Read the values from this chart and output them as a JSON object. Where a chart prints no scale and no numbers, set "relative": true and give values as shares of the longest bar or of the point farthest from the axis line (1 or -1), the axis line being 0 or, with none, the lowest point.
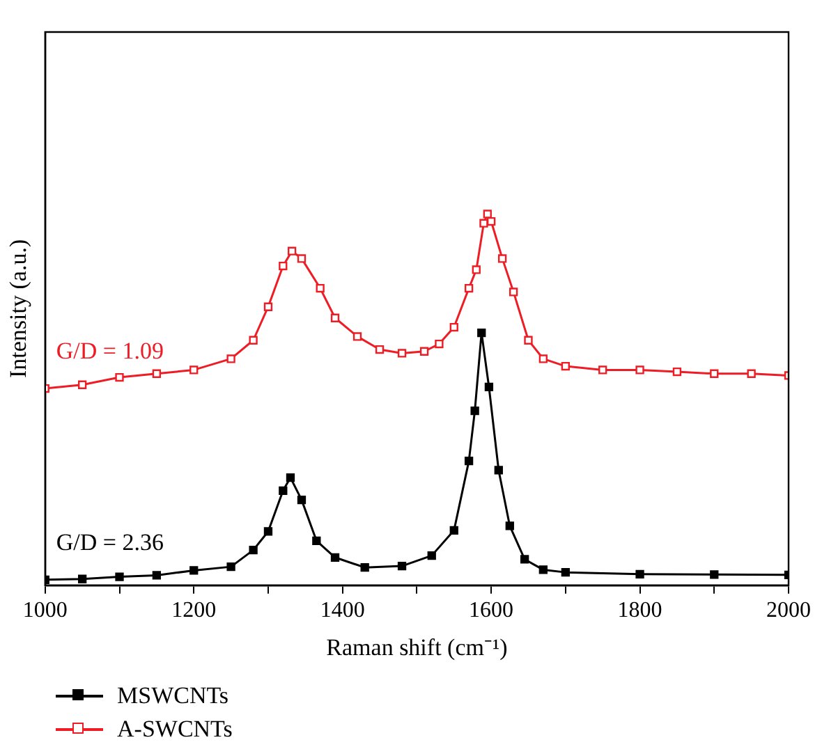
{
  "chart_data": {
    "type": "line",
    "xlabel": "Raman shift (cm⁻¹)",
    "ylabel": "Intensity (a.u.)",
    "relative": true,
    "marker": "square",
    "legend": "bottom",
    "grid": false,
    "xlim": [
      1000,
      2000
    ],
    "xticks": [
      1000,
      {
        "value": 1100,
        "label": null
      },
      1200,
      {
        "value": 1300,
        "label": null
      },
      1400,
      {
        "value": 1500,
        "label": null
      },
      1600,
      {
        "value": 1700,
        "label": null
      },
      1800,
      {
        "value": 1900,
        "label": null
      },
      2000
    ],
    "annotations": [
      "G/D = 1.09",
      "G/D = 2.36"
    ],
    "series": [
      {
        "name": "MSWCNTs",
        "color": "#000000",
        "x": [
          1000,
          1050,
          1100,
          1150,
          1200,
          1250,
          1280,
          1300,
          1320,
          1330,
          1345,
          1365,
          1390,
          1430,
          1480,
          1520,
          1550,
          1570,
          1578,
          1587,
          1597,
          1610,
          1625,
          1645,
          1670,
          1700,
          1800,
          1900,
          2000
        ],
        "values": [
          0.015,
          0.017,
          0.023,
          0.027,
          0.04,
          0.05,
          0.095,
          0.145,
          0.255,
          0.29,
          0.23,
          0.12,
          0.075,
          0.048,
          0.052,
          0.08,
          0.148,
          0.335,
          0.47,
          0.68,
          0.534,
          0.31,
          0.16,
          0.07,
          0.042,
          0.035,
          0.03,
          0.029,
          0.028
        ]
      },
      {
        "name": "A-SWCNTs",
        "color": "#ee1c25",
        "x": [
          1000,
          1050,
          1100,
          1150,
          1200,
          1250,
          1280,
          1300,
          1320,
          1332,
          1345,
          1370,
          1390,
          1420,
          1450,
          1480,
          1510,
          1530,
          1550,
          1570,
          1580,
          1590,
          1595,
          1600,
          1615,
          1630,
          1650,
          1670,
          1700,
          1750,
          1800,
          1850,
          1900,
          1950,
          2000
        ],
        "values": [
          0.53,
          0.54,
          0.56,
          0.57,
          0.58,
          0.61,
          0.66,
          0.75,
          0.86,
          0.9,
          0.88,
          0.8,
          0.72,
          0.67,
          0.635,
          0.625,
          0.63,
          0.65,
          0.695,
          0.8,
          0.85,
          0.975,
          1,
          0.98,
          0.88,
          0.79,
          0.66,
          0.61,
          0.59,
          0.58,
          0.58,
          0.575,
          0.57,
          0.57,
          0.565
        ]
      }
    ]
  }
}
